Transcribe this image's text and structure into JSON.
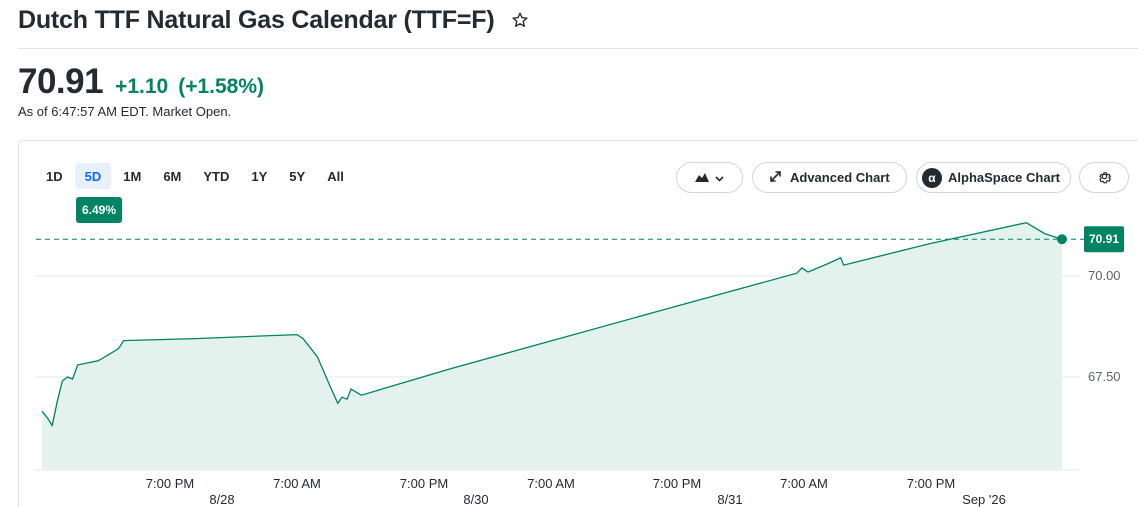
{
  "header": {
    "title": "Dutch TTF Natural Gas Calendar (TTF=F)",
    "star_icon": "star-outline-icon"
  },
  "quote": {
    "price": "70.91",
    "change": "+1.10",
    "change_pct": "(+1.58%)",
    "as_of": "As of 6:47:57 AM EDT. Market Open.",
    "positive_color": "#008463"
  },
  "range_tabs": [
    {
      "label": "1D",
      "active": false
    },
    {
      "label": "5D",
      "active": true
    },
    {
      "label": "1M",
      "active": false
    },
    {
      "label": "6M",
      "active": false
    },
    {
      "label": "YTD",
      "active": false
    },
    {
      "label": "1Y",
      "active": false
    },
    {
      "label": "5Y",
      "active": false
    },
    {
      "label": "All",
      "active": false
    }
  ],
  "range_performance": "6.49%",
  "toolbar": {
    "chart_type_icon": "mountain-chart-icon",
    "advanced_chart": "Advanced Chart",
    "alphaspace_chart": "AlphaSpace Chart",
    "alphaspace_logo": "α",
    "settings_icon": "gear-icon"
  },
  "chart_data": {
    "type": "area",
    "line_color": "#008463",
    "fill_color": "#e3f2ed",
    "current_value_label": "70.91",
    "current_value": 70.91,
    "y_ticks": [
      "70.00",
      "67.50"
    ],
    "ylim": [
      65.75,
      71.8
    ],
    "x_tick_labels": [
      "7:00 PM",
      "7:00 AM",
      "7:00 PM",
      "7:00 AM",
      "7:00 PM",
      "7:00 AM",
      "7:00 PM"
    ],
    "x_date_labels": [
      "8/28",
      "8/30",
      "8/31",
      "Sep '26"
    ],
    "x_index_range": [
      0,
      100
    ],
    "series": [
      {
        "values": [
          [
            0,
            66.65
          ],
          [
            0.5,
            66.5
          ],
          [
            1.0,
            66.3
          ],
          [
            1.5,
            66.9
          ],
          [
            2.0,
            67.4
          ],
          [
            2.5,
            67.5
          ],
          [
            3.0,
            67.45
          ],
          [
            3.5,
            67.8
          ],
          [
            4.5,
            67.85
          ],
          [
            5.5,
            67.9
          ],
          [
            6.5,
            68.05
          ],
          [
            7.5,
            68.2
          ],
          [
            8.0,
            68.4
          ],
          [
            15,
            68.45
          ],
          [
            20,
            68.5
          ],
          [
            25,
            68.55
          ],
          [
            25.6,
            68.45
          ],
          [
            27,
            68.0
          ],
          [
            28.2,
            67.3
          ],
          [
            29.0,
            66.85
          ],
          [
            29.4,
            67.0
          ],
          [
            29.9,
            66.95
          ],
          [
            30.3,
            67.2
          ],
          [
            31.3,
            67.05
          ],
          [
            40,
            67.7
          ],
          [
            60,
            69.1
          ],
          [
            74,
            70.07
          ],
          [
            74.5,
            70.2
          ],
          [
            75.1,
            70.1
          ],
          [
            77,
            70.3
          ],
          [
            78.3,
            70.45
          ],
          [
            78.6,
            70.27
          ],
          [
            87,
            70.8
          ],
          [
            96.5,
            71.32
          ],
          [
            98.3,
            71.05
          ],
          [
            100,
            70.91
          ]
        ]
      }
    ]
  }
}
